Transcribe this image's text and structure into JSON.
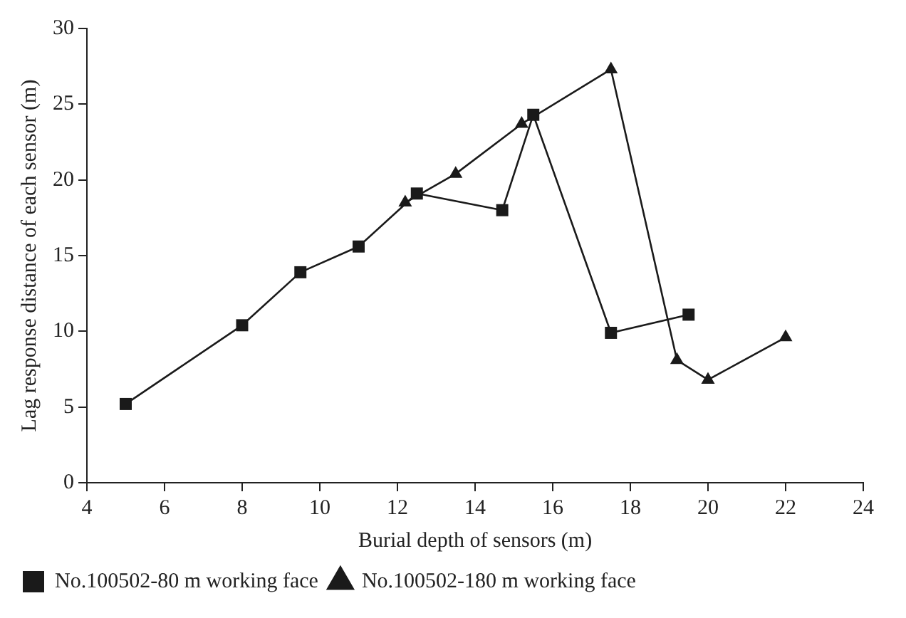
{
  "chart_data": {
    "type": "line",
    "xlabel": "Burial depth of sensors (m)",
    "ylabel": "Lag response distance of each sensor (m)",
    "xlim": [
      4,
      24
    ],
    "xticks": [
      4,
      6,
      8,
      10,
      12,
      14,
      16,
      18,
      20,
      22,
      24
    ],
    "ylim": [
      0,
      30
    ],
    "yticks": [
      0,
      5,
      10,
      15,
      20,
      25,
      30
    ],
    "grid": false,
    "legend": "bottom",
    "line_style": "solid",
    "series": [
      {
        "name": "No.100502-80 m working face",
        "color": "#1a1a1a",
        "marker": "square",
        "x": [
          5,
          8,
          9.5,
          11,
          12.5,
          14.7,
          15.5,
          17.5,
          19.5
        ],
        "values": [
          5.2,
          10.4,
          13.9,
          15.6,
          19.1,
          18,
          24.3,
          9.9,
          11.1
        ]
      },
      {
        "name": "No.100502-180 m working face",
        "color": "#1a1a1a",
        "marker": "triangle",
        "x": [
          12.2,
          13.5,
          15.2,
          17.5,
          19.2,
          20,
          22
        ],
        "values": [
          18.5,
          20.4,
          23.7,
          27.3,
          8.1,
          6.8,
          9.6
        ]
      }
    ]
  }
}
